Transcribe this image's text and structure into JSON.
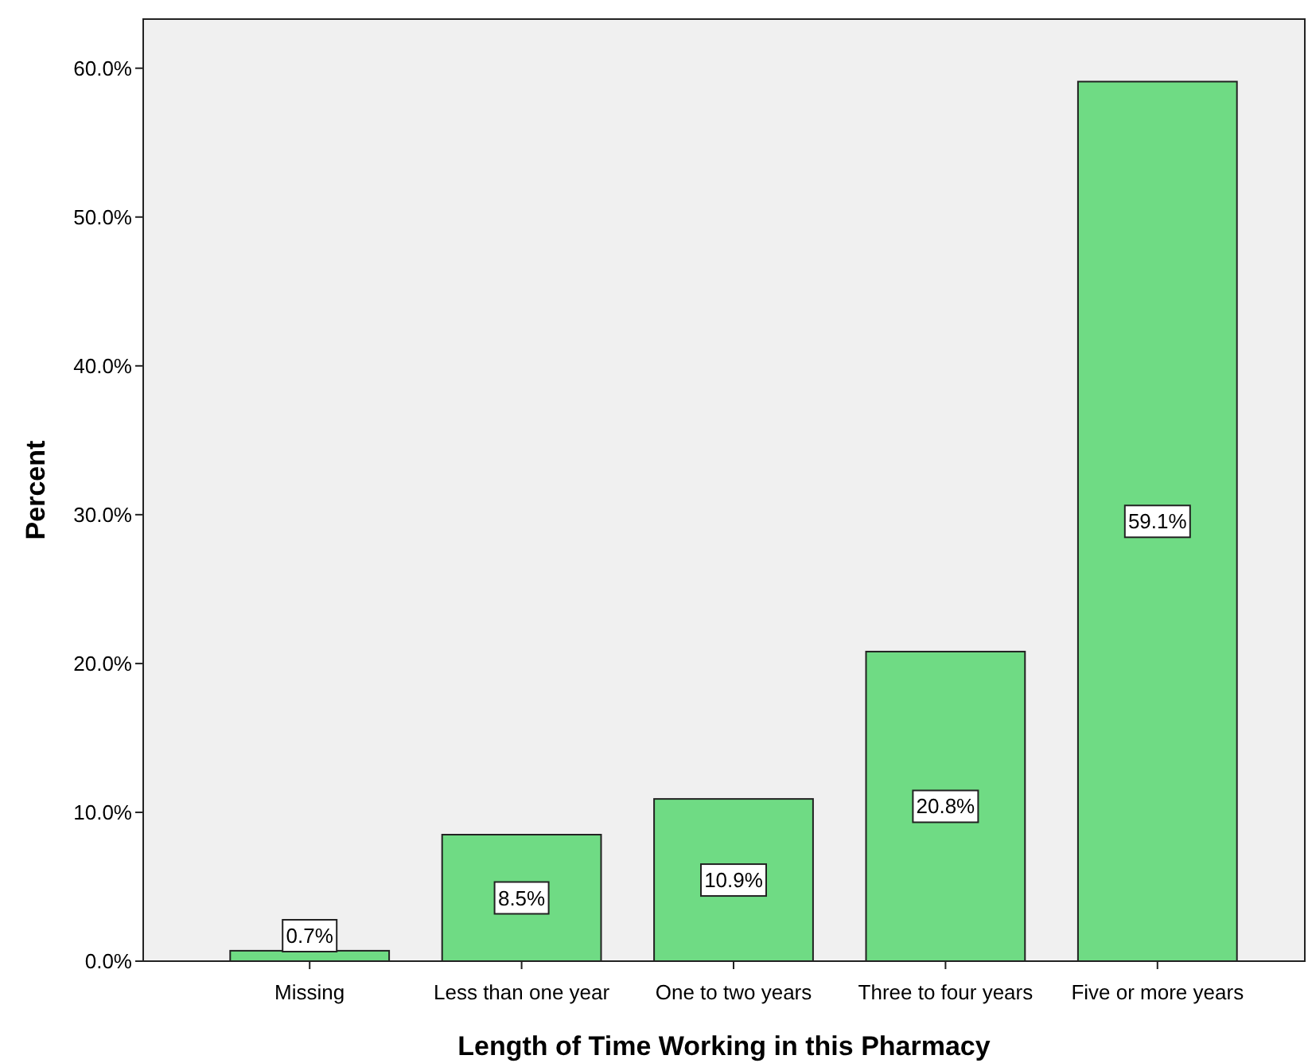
{
  "chart_data": {
    "type": "bar",
    "xlabel": "Length of Time Working in this Pharmacy",
    "ylabel": "Percent",
    "categories": [
      "Missing",
      "Less than one year",
      "One to two years",
      "Three to four years",
      "Five or more years"
    ],
    "values": [
      0.7,
      8.5,
      10.9,
      20.8,
      59.1
    ],
    "value_labels": [
      "0.7%",
      "8.5%",
      "10.9%",
      "20.8%",
      "59.1%"
    ],
    "color": "#6fdb84",
    "ylim": [
      0,
      63.3
    ],
    "yticks": [
      {
        "value": 0,
        "label": "0.0%"
      },
      {
        "value": 10,
        "label": "10.0%"
      },
      {
        "value": 20,
        "label": "20.0%"
      },
      {
        "value": 30,
        "label": "30.0%"
      },
      {
        "value": 40,
        "label": "40.0%"
      },
      {
        "value": 50,
        "label": "50.0%"
      },
      {
        "value": 60,
        "label": "60.0%"
      }
    ],
    "grid": false
  }
}
